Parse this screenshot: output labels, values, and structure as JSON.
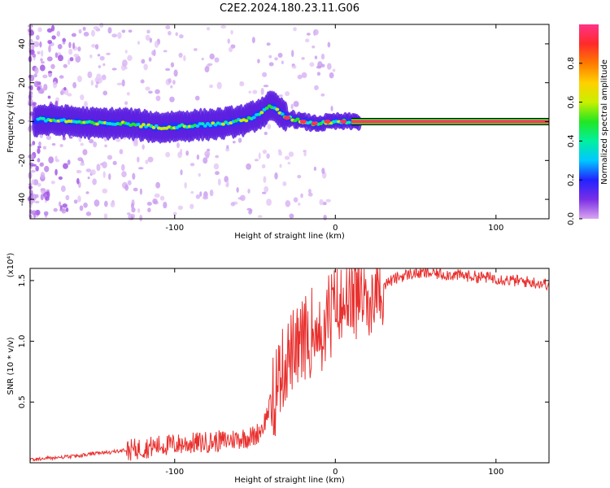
{
  "title": "C2E2.2024.180.23.11.G06",
  "chart_data": [
    {
      "type": "heatmap",
      "xlabel": "Height of straight line (km)",
      "ylabel": "Frequency (Hz)",
      "xlim": [
        -190,
        133
      ],
      "ylim": [
        -50,
        50
      ],
      "xticks": [
        -100,
        0,
        100
      ],
      "yticks": [
        -40,
        -20,
        0,
        20,
        40
      ],
      "colorbar": {
        "label": "Normalized spectral amplitude",
        "range": [
          0.0,
          1.0
        ],
        "ticks": [
          0.0,
          0.2,
          0.4,
          0.6,
          0.8
        ],
        "colormap": [
          "#d9a6ef",
          "#7a2ee6",
          "#2222ff",
          "#00c8ff",
          "#00f0a0",
          "#22e622",
          "#c8f000",
          "#ffd000",
          "#ff7a00",
          "#ff2a2a",
          "#ff3388"
        ]
      },
      "ridge": [
        {
          "x": -185,
          "y": 1
        },
        {
          "x": -170,
          "y": 0.5
        },
        {
          "x": -150,
          "y": -1
        },
        {
          "x": -130,
          "y": -1
        },
        {
          "x": -110,
          "y": -3
        },
        {
          "x": -90,
          "y": -2
        },
        {
          "x": -70,
          "y": -1
        },
        {
          "x": -55,
          "y": 1
        },
        {
          "x": -45,
          "y": 5
        },
        {
          "x": -40,
          "y": 8
        },
        {
          "x": -35,
          "y": 5
        },
        {
          "x": -30,
          "y": 2
        },
        {
          "x": -20,
          "y": 0
        },
        {
          "x": -13,
          "y": -1
        },
        {
          "x": 0,
          "y": 0
        },
        {
          "x": 20,
          "y": 0
        },
        {
          "x": 133,
          "y": 0
        }
      ]
    },
    {
      "type": "line",
      "xlabel": "Height of straight line (km)",
      "ylabel": "SNR (10 * v/v)",
      "y_multiplier": "(x10⁴)",
      "xlim": [
        -190,
        133
      ],
      "ylim": [
        0,
        1.6
      ],
      "xticks": [
        -100,
        0,
        100
      ],
      "yticks": [
        0.5,
        1.0,
        1.5
      ],
      "color": "#e8302e",
      "series": [
        {
          "values_x": [
            -190,
            -180,
            -170,
            -160,
            -150,
            -140,
            -130,
            -120,
            -110,
            -100,
            -90,
            -80,
            -70,
            -60,
            -50,
            -45,
            -40,
            -35,
            -30,
            -28,
            -25,
            -22,
            -20,
            -18,
            -15,
            -12,
            -10,
            -8,
            -5,
            -3,
            0,
            3,
            5,
            8,
            10,
            15,
            20,
            25,
            30,
            35,
            40,
            45,
            50,
            60,
            70,
            80,
            90,
            100,
            110,
            120,
            133
          ],
          "values_y": [
            0.02,
            0.03,
            0.04,
            0.05,
            0.07,
            0.08,
            0.1,
            0.12,
            0.14,
            0.15,
            0.16,
            0.17,
            0.18,
            0.2,
            0.22,
            0.3,
            0.5,
            0.7,
            0.85,
            0.9,
            0.95,
            1.0,
            1.0,
            1.05,
            1.1,
            1.15,
            1.2,
            1.18,
            1.22,
            1.25,
            1.28,
            1.3,
            1.32,
            1.35,
            1.38,
            1.4,
            1.42,
            1.44,
            1.47,
            1.5,
            1.53,
            1.55,
            1.56,
            1.56,
            1.55,
            1.54,
            1.53,
            1.52,
            1.5,
            1.49,
            1.47
          ]
        }
      ]
    }
  ]
}
